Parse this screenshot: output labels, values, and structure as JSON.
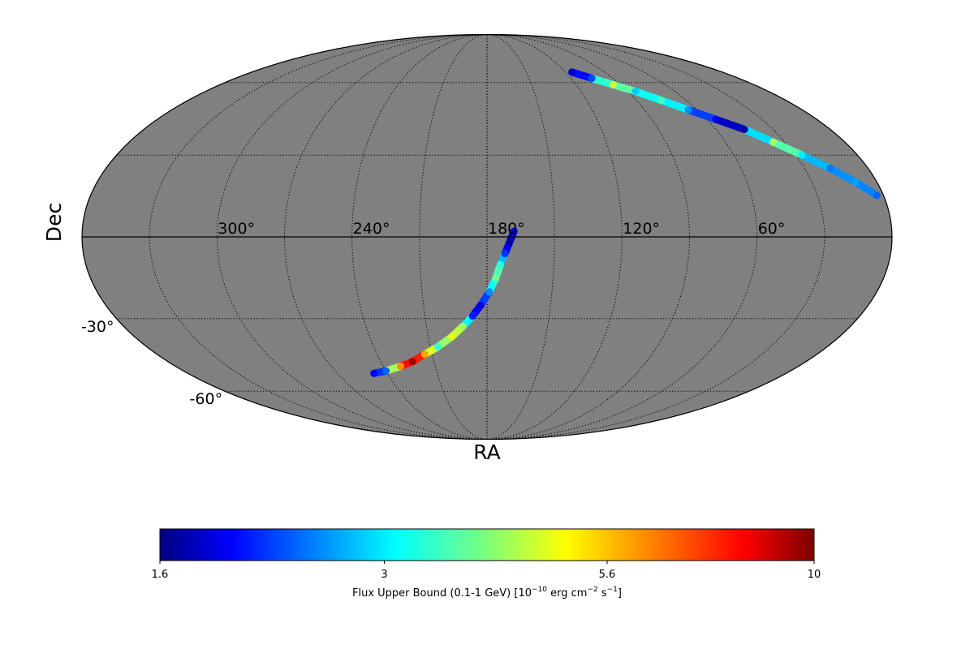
{
  "chart_data": {
    "type": "heatmap",
    "projection": "mollweide",
    "background_color": "#808080",
    "grid": true,
    "xlabel": "RA",
    "ylabel": "Dec",
    "ra_ticks": [
      {
        "value": 300,
        "label": "300°"
      },
      {
        "value": 240,
        "label": "240°"
      },
      {
        "value": 180,
        "label": "180°"
      },
      {
        "value": 120,
        "label": "120°"
      },
      {
        "value": 60,
        "label": "60°"
      }
    ],
    "dec_ticks": [
      {
        "value": -30,
        "label": "-30°"
      },
      {
        "value": -60,
        "label": "-60°"
      }
    ],
    "colorbar": {
      "colormap": "jet",
      "scale": "log",
      "min": 1.6,
      "max": 10,
      "ticks": [
        {
          "value": 1.6,
          "label": "1.6"
        },
        {
          "value": 3,
          "label": "3"
        },
        {
          "value": 5.6,
          "label": "5.6"
        },
        {
          "value": 10,
          "label": "10"
        }
      ],
      "label": "Flux Upper Bound (0.1-1 GeV) [10^-10 erg cm^-2 s^-1]",
      "label_parts": {
        "prefix": "Flux Upper Bound (0.1-1 GeV) [10",
        "exp1": "−10",
        "mid1": " erg cm",
        "exp2": "−2",
        "mid2": " s",
        "exp3": "−1",
        "suffix": "]"
      }
    },
    "bands": [
      {
        "name": "",
        "points": [
          {
            "ra": 168,
            "dec": 2,
            "value": 1.9
          },
          {
            "ra": 170,
            "dec": -2,
            "value": 1.7
          },
          {
            "ra": 172,
            "dec": -6,
            "value": 2.2
          },
          {
            "ra": 174,
            "dec": -10,
            "value": 3.4
          },
          {
            "ra": 176,
            "dec": -15,
            "value": 3.9
          },
          {
            "ra": 179,
            "dec": -20,
            "value": 2.6
          },
          {
            "ra": 183,
            "dec": -25,
            "value": 1.9
          },
          {
            "ra": 187,
            "dec": -29,
            "value": 2.1
          },
          {
            "ra": 192,
            "dec": -33,
            "value": 4.2
          },
          {
            "ra": 198,
            "dec": -37,
            "value": 4.8
          },
          {
            "ra": 206,
            "dec": -41,
            "value": 3.5
          },
          {
            "ra": 214,
            "dec": -44,
            "value": 5.9
          },
          {
            "ra": 222,
            "dec": -47,
            "value": 9.3
          },
          {
            "ra": 230,
            "dec": -49,
            "value": 6.2
          },
          {
            "ra": 240,
            "dec": -51,
            "value": 2.4
          },
          {
            "ra": 248,
            "dec": -52,
            "value": 2.0
          }
        ]
      },
      {
        "name": "",
        "points": [
          {
            "ra": 115,
            "dec": 65,
            "value": 1.8
          },
          {
            "ra": 105,
            "dec": 62,
            "value": 2.3
          },
          {
            "ra": 95,
            "dec": 59,
            "value": 4.6
          },
          {
            "ra": 85,
            "dec": 56,
            "value": 2.9
          },
          {
            "ra": 75,
            "dec": 52,
            "value": 3.6
          },
          {
            "ra": 65,
            "dec": 48,
            "value": 2.6
          },
          {
            "ra": 55,
            "dec": 44,
            "value": 1.9
          },
          {
            "ra": 45,
            "dec": 40,
            "value": 1.7
          },
          {
            "ra": 36,
            "dec": 35,
            "value": 4.3
          },
          {
            "ra": 27,
            "dec": 30,
            "value": 3.1
          },
          {
            "ra": 18,
            "dec": 25,
            "value": 2.5
          },
          {
            "ra": 10,
            "dec": 20,
            "value": 2.7
          },
          {
            "ra": 3,
            "dec": 15,
            "value": 2.4
          }
        ]
      }
    ]
  }
}
